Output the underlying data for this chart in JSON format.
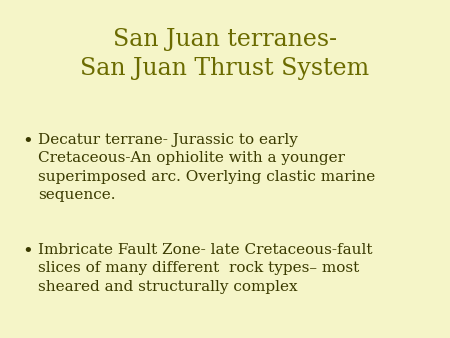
{
  "title_line1": "San Juan terranes-",
  "title_line2": "San Juan Thrust System",
  "title_color": "#6b6b00",
  "background_color": "#f5f5c8",
  "bullet_color": "#3a3a00",
  "bullet_points": [
    "Decatur terrane- Jurassic to early\nCretaceous-An ophiolite with a younger\nsuperimposed arc. Overlying clastic marine\nsequence.",
    "Imbricate Fault Zone- late Cretaceous-fault\nslices of many different  rock types– most\nsheared and structurally complex"
  ],
  "title_fontsize": 17,
  "body_fontsize": 11,
  "figsize": [
    4.5,
    3.38
  ],
  "dpi": 100
}
